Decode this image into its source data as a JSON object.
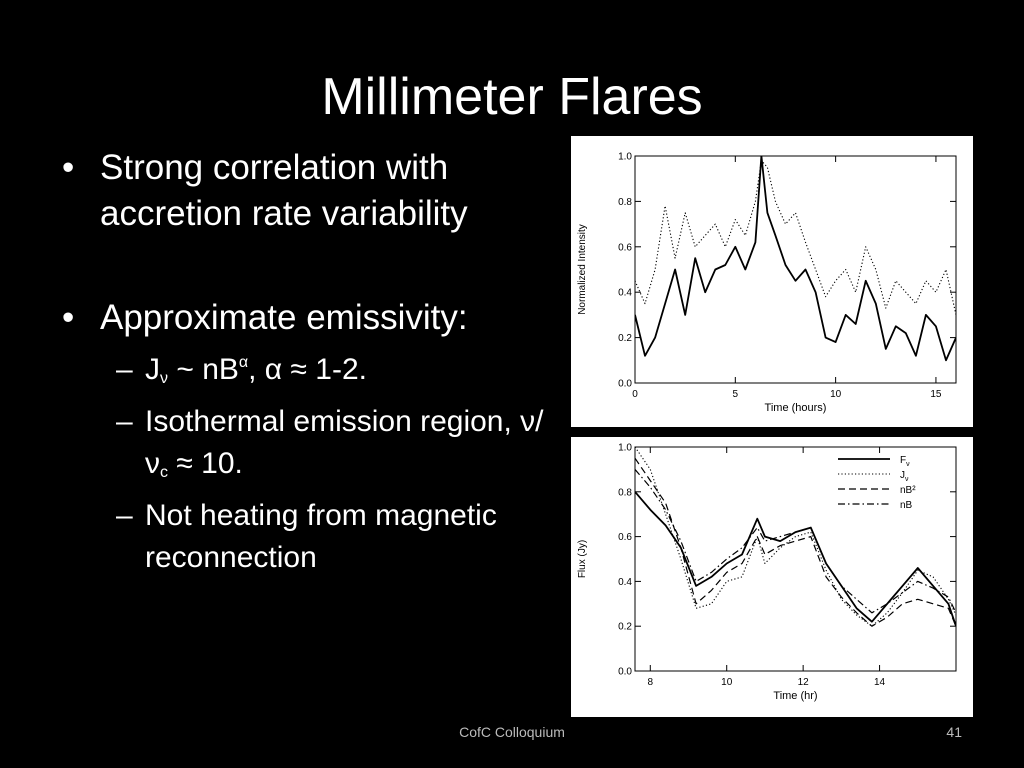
{
  "title": "Millimeter Flares",
  "bullets": [
    {
      "text": "Strong correlation with accretion rate variability"
    },
    {
      "text": "Approximate emissivity:"
    }
  ],
  "subbullets": {
    "s1": {
      "j": "J",
      "nu": "ν",
      "tilde": " ~ nB",
      "alpha_sup": "α",
      "rest": ", α ≈ 1-2."
    },
    "s2": {
      "pre": "Isothermal emission region, ν/ν",
      "c": "c",
      "post": " ≈ 10."
    },
    "s3": {
      "text": "Not heating from magnetic reconnection"
    }
  },
  "footer": {
    "center": "CofC Colloquium",
    "page": "41"
  },
  "chart_data": [
    {
      "type": "line",
      "xlabel": "Time (hours)",
      "ylabel": "Normalized Intensity",
      "xlim": [
        0,
        16
      ],
      "ylim": [
        0,
        1
      ],
      "xticks": [
        0,
        5,
        10,
        15
      ],
      "yticks": [
        0.0,
        0.2,
        0.4,
        0.6,
        0.8,
        1.0
      ],
      "x": [
        0,
        0.5,
        1,
        1.5,
        2,
        2.5,
        3,
        3.5,
        4,
        4.5,
        5,
        5.5,
        6,
        6.3,
        6.6,
        7,
        7.5,
        8,
        8.5,
        9,
        9.5,
        10,
        10.5,
        11,
        11.5,
        12,
        12.5,
        13,
        13.5,
        14,
        14.5,
        15,
        15.5,
        16
      ],
      "series": [
        {
          "style": "solid",
          "values": [
            0.3,
            0.12,
            0.2,
            0.35,
            0.5,
            0.3,
            0.55,
            0.4,
            0.5,
            0.52,
            0.6,
            0.5,
            0.62,
            1.0,
            0.75,
            0.65,
            0.52,
            0.45,
            0.5,
            0.4,
            0.2,
            0.18,
            0.3,
            0.26,
            0.45,
            0.35,
            0.15,
            0.25,
            0.22,
            0.12,
            0.3,
            0.25,
            0.1,
            0.2
          ]
        },
        {
          "style": "dotted",
          "values": [
            0.45,
            0.35,
            0.5,
            0.78,
            0.55,
            0.75,
            0.6,
            0.65,
            0.7,
            0.6,
            0.72,
            0.65,
            0.8,
            0.98,
            0.95,
            0.8,
            0.7,
            0.75,
            0.62,
            0.5,
            0.38,
            0.45,
            0.5,
            0.4,
            0.6,
            0.5,
            0.33,
            0.45,
            0.4,
            0.35,
            0.45,
            0.4,
            0.5,
            0.3
          ]
        }
      ]
    },
    {
      "type": "line",
      "xlabel": "Time (hr)",
      "ylabel": "Flux (Jy)",
      "xlim": [
        7.6,
        16
      ],
      "ylim": [
        0,
        1
      ],
      "xticks": [
        8,
        10,
        12,
        14
      ],
      "yticks": [
        0.0,
        0.2,
        0.4,
        0.6,
        0.8,
        1.0
      ],
      "legend_position": "top-right",
      "x": [
        7.6,
        8,
        8.4,
        8.8,
        9.2,
        9.6,
        10,
        10.4,
        10.8,
        11,
        11.4,
        11.8,
        12.2,
        12.6,
        13,
        13.4,
        13.8,
        14.2,
        14.6,
        15,
        15.4,
        15.8,
        16
      ],
      "series": [
        {
          "name": "F",
          "sub": "ν",
          "style": "solid",
          "values": [
            0.8,
            0.72,
            0.65,
            0.55,
            0.38,
            0.42,
            0.48,
            0.52,
            0.68,
            0.6,
            0.58,
            0.62,
            0.64,
            0.48,
            0.38,
            0.28,
            0.22,
            0.3,
            0.38,
            0.46,
            0.38,
            0.3,
            0.2
          ]
        },
        {
          "name": "J",
          "sub": "ν",
          "style": "dotted",
          "values": [
            1.0,
            0.9,
            0.7,
            0.5,
            0.28,
            0.3,
            0.4,
            0.42,
            0.6,
            0.48,
            0.55,
            0.6,
            0.62,
            0.45,
            0.32,
            0.25,
            0.2,
            0.26,
            0.35,
            0.45,
            0.42,
            0.32,
            0.25
          ]
        },
        {
          "name": "nB²",
          "style": "dashed",
          "values": [
            0.95,
            0.85,
            0.75,
            0.55,
            0.3,
            0.36,
            0.44,
            0.48,
            0.6,
            0.52,
            0.56,
            0.58,
            0.6,
            0.42,
            0.33,
            0.26,
            0.2,
            0.24,
            0.3,
            0.32,
            0.3,
            0.28,
            0.2
          ]
        },
        {
          "name": "nB",
          "style": "dashdot",
          "values": [
            0.9,
            0.82,
            0.72,
            0.58,
            0.4,
            0.44,
            0.5,
            0.55,
            0.64,
            0.58,
            0.6,
            0.62,
            0.64,
            0.48,
            0.38,
            0.32,
            0.26,
            0.3,
            0.35,
            0.4,
            0.37,
            0.33,
            0.26
          ]
        }
      ]
    }
  ]
}
